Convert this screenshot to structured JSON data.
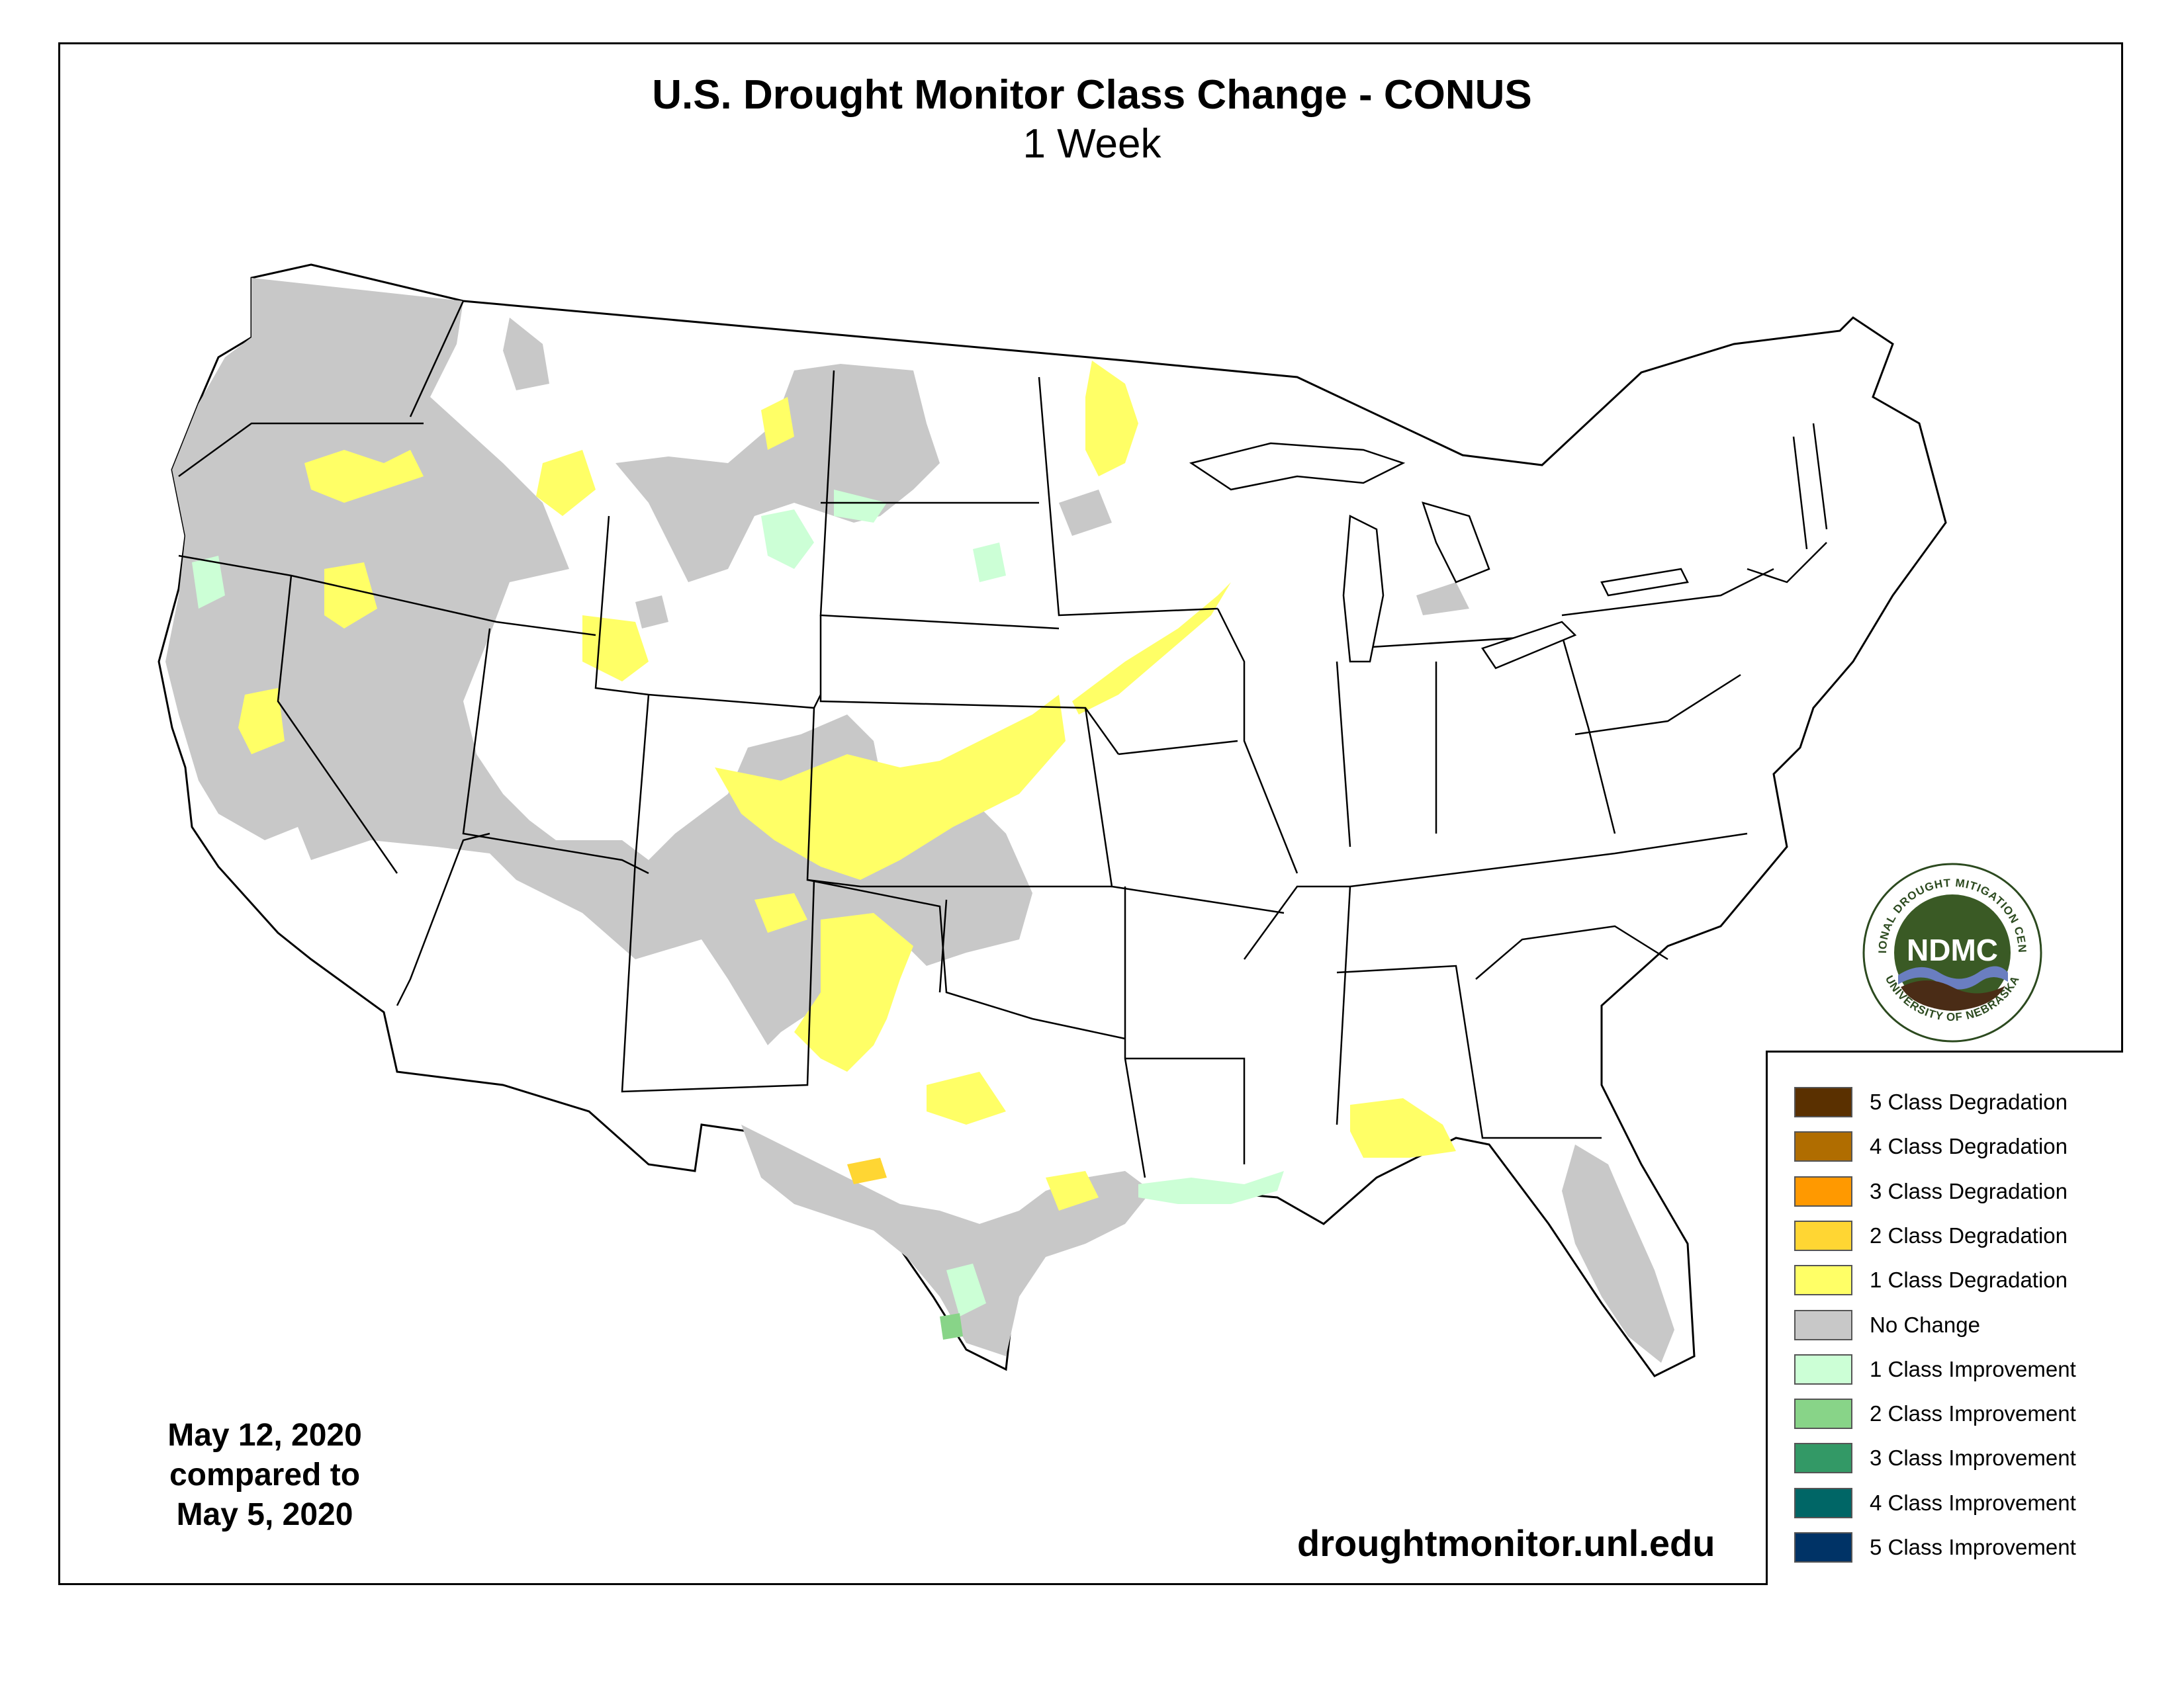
{
  "map": {
    "title": "U.S. Drought Monitor Class Change - CONUS",
    "subtitle": "1 Week",
    "date_current": "May 12, 2020",
    "date_compared_label": "compared to",
    "date_previous": "May 5, 2020",
    "source_url": "droughtmonitor.unl.edu"
  },
  "logo": {
    "acronym": "NDMC",
    "ring_text_top": "NATIONAL DROUGHT MITIGATION CENTER",
    "ring_text_bottom": "UNIVERSITY OF NEBRASKA"
  },
  "legend": {
    "items": [
      {
        "label": "5 Class Degradation",
        "color": "#5a3000"
      },
      {
        "label": "4 Class Degradation",
        "color": "#b06d00"
      },
      {
        "label": "3 Class Degradation",
        "color": "#ff9900"
      },
      {
        "label": "2 Class Degradation",
        "color": "#ffd633"
      },
      {
        "label": "1 Class Degradation",
        "color": "#ffff66"
      },
      {
        "label": "No Change",
        "color": "#c8c8c8"
      },
      {
        "label": "1 Class Improvement",
        "color": "#ccffd6"
      },
      {
        "label": "2 Class Improvement",
        "color": "#88d488"
      },
      {
        "label": "3 Class Improvement",
        "color": "#339966"
      },
      {
        "label": "4 Class Improvement",
        "color": "#006666"
      },
      {
        "label": "5 Class Improvement",
        "color": "#003366"
      }
    ]
  }
}
